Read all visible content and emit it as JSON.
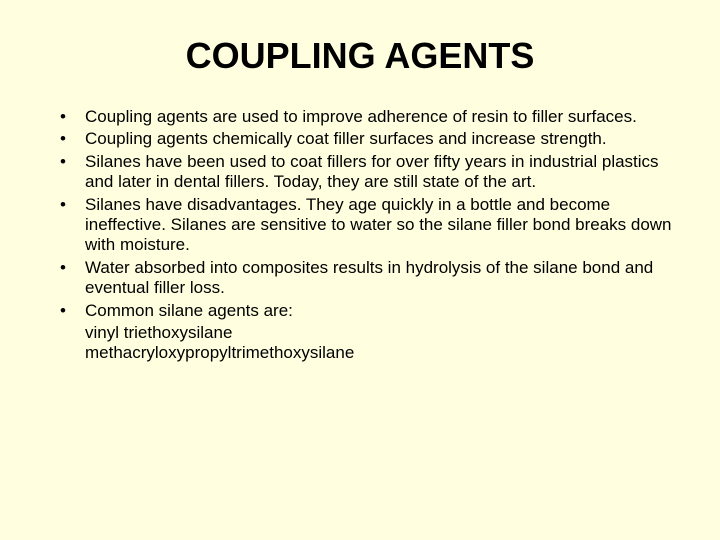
{
  "background_color": "#ffffe0",
  "text_color": "#000000",
  "title": {
    "text": "COUPLING AGENTS",
    "fontsize": 36,
    "fontweight": "bold"
  },
  "body_fontsize": 17,
  "bullets": [
    "Coupling agents are used to improve adherence of resin to filler surfaces.",
    "Coupling agents chemically coat filler surfaces and increase strength.",
    "Silanes have been used to coat fillers for over fifty years in industrial plastics and later in dental fillers.  Today, they are still state of the art.",
    "Silanes have disadvantages.  They age quickly in a bottle and become ineffective.  Silanes are sensitive to water so the silane filler bond breaks down with moisture.",
    "Water absorbed into composites results in hydrolysis of the silane bond and eventual filler loss.",
    "Common silane agents are:"
  ],
  "sub_lines": [
    "vinyl triethoxysilane",
    "methacryloxypropyltrimethoxysilane"
  ]
}
